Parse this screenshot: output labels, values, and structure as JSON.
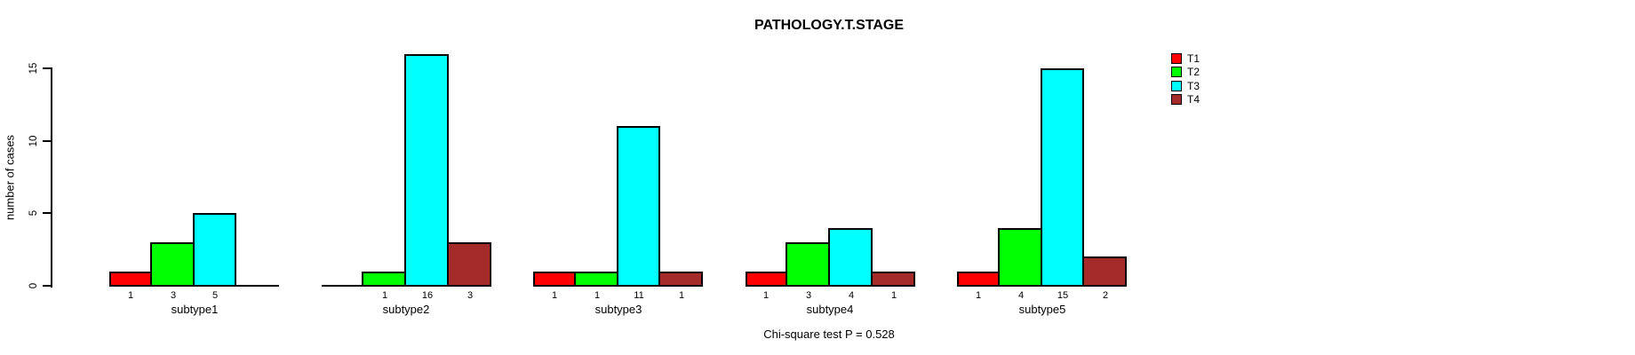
{
  "figure": {
    "title": "PATHOLOGY.T.STAGE",
    "annotation": "Chi-square test P = 0.528"
  },
  "chart_data": {
    "type": "bar",
    "title": "PATHOLOGY.T.STAGE",
    "xlabel": "",
    "ylabel": "number of cases",
    "categories": [
      "subtype1",
      "subtype2",
      "subtype3",
      "subtype4",
      "subtype5"
    ],
    "series": [
      {
        "name": "T1",
        "color": "#FF0000",
        "values": [
          1,
          0,
          1,
          1,
          1
        ]
      },
      {
        "name": "T2",
        "color": "#00FF00",
        "values": [
          3,
          1,
          1,
          3,
          4
        ]
      },
      {
        "name": "T3",
        "color": "#00FFFF",
        "values": [
          5,
          16,
          11,
          4,
          15
        ]
      },
      {
        "name": "T4",
        "color": "#A52A2A",
        "values": [
          0,
          3,
          1,
          1,
          2
        ]
      }
    ],
    "yticks": [
      0,
      5,
      10,
      15
    ],
    "ylim": [
      0,
      16
    ],
    "grid": false,
    "legend_position": "right",
    "legend_entries": [
      "T1",
      "T2",
      "T3",
      "T4"
    ],
    "bar_value_labels": "value shown under each bar, zero values omitted",
    "annotation": "Chi-square test P = 0.528",
    "background_color": "#FFFFFF",
    "axis_color": "#000000"
  }
}
